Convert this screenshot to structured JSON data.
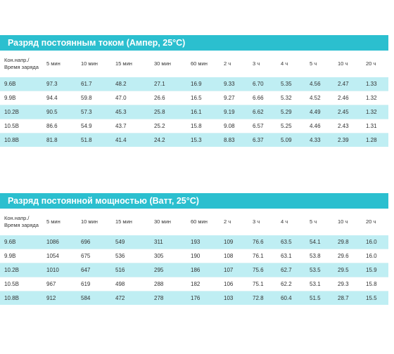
{
  "tables": [
    {
      "title": "Разряд постоянным током (Ампер, 25°C)",
      "header_label_line1": "Кон.напр./",
      "header_label_line2": "Время заряда",
      "columns": [
        "5 мин",
        "10 мин",
        "15 мин",
        "30 мин",
        "60 мин",
        "2 ч",
        "3 ч",
        "4 ч",
        "5 ч",
        "10 ч",
        "20 ч"
      ],
      "rows": [
        {
          "label": "9.6В",
          "values": [
            "97.3",
            "61.7",
            "48.2",
            "27.1",
            "16.9",
            "9.33",
            "6.70",
            "5.35",
            "4.56",
            "2.47",
            "1.33"
          ]
        },
        {
          "label": "9.9В",
          "values": [
            "94.4",
            "59.8",
            "47.0",
            "26.6",
            "16.5",
            "9.27",
            "6.66",
            "5.32",
            "4.52",
            "2.46",
            "1.32"
          ]
        },
        {
          "label": "10.2В",
          "values": [
            "90.5",
            "57.3",
            "45.3",
            "25.8",
            "16.1",
            "9.19",
            "6.62",
            "5.29",
            "4.49",
            "2.45",
            "1.32"
          ]
        },
        {
          "label": "10.5В",
          "values": [
            "86.6",
            "54.9",
            "43.7",
            "25.2",
            "15.8",
            "9.08",
            "6.57",
            "5.25",
            "4.46",
            "2.43",
            "1.31"
          ]
        },
        {
          "label": "10.8В",
          "values": [
            "81.8",
            "51.8",
            "41.4",
            "24.2",
            "15.3",
            "8.83",
            "6.37",
            "5.09",
            "4.33",
            "2.39",
            "1.28"
          ]
        }
      ]
    },
    {
      "title": "Разряд постоянной мощностью (Ватт, 25°C)",
      "header_label_line1": "Кон.напр./",
      "header_label_line2": "Время заряда",
      "columns": [
        "5 мин",
        "10 мин",
        "15 мин",
        "30 мин",
        "60 мин",
        "2 ч",
        "3 ч",
        "4 ч",
        "5 ч",
        "10 ч",
        "20 ч"
      ],
      "rows": [
        {
          "label": "9.6В",
          "values": [
            "1086",
            "696",
            "549",
            "311",
            "193",
            "109",
            "76.6",
            "63.5",
            "54.1",
            "29.8",
            "16.0"
          ]
        },
        {
          "label": "9.9В",
          "values": [
            "1054",
            "675",
            "536",
            "305",
            "190",
            "108",
            "76.1",
            "63.1",
            "53.8",
            "29.6",
            "16.0"
          ]
        },
        {
          "label": "10.2В",
          "values": [
            "1010",
            "647",
            "516",
            "295",
            "186",
            "107",
            "75.6",
            "62.7",
            "53.5",
            "29.5",
            "15.9"
          ]
        },
        {
          "label": "10.5В",
          "values": [
            "967",
            "619",
            "498",
            "288",
            "182",
            "106",
            "75.1",
            "62.2",
            "53.1",
            "29.3",
            "15.8"
          ]
        },
        {
          "label": "10.8В",
          "values": [
            "912",
            "584",
            "472",
            "278",
            "176",
            "103",
            "72.8",
            "60.4",
            "51.5",
            "28.7",
            "15.5"
          ]
        }
      ]
    }
  ]
}
